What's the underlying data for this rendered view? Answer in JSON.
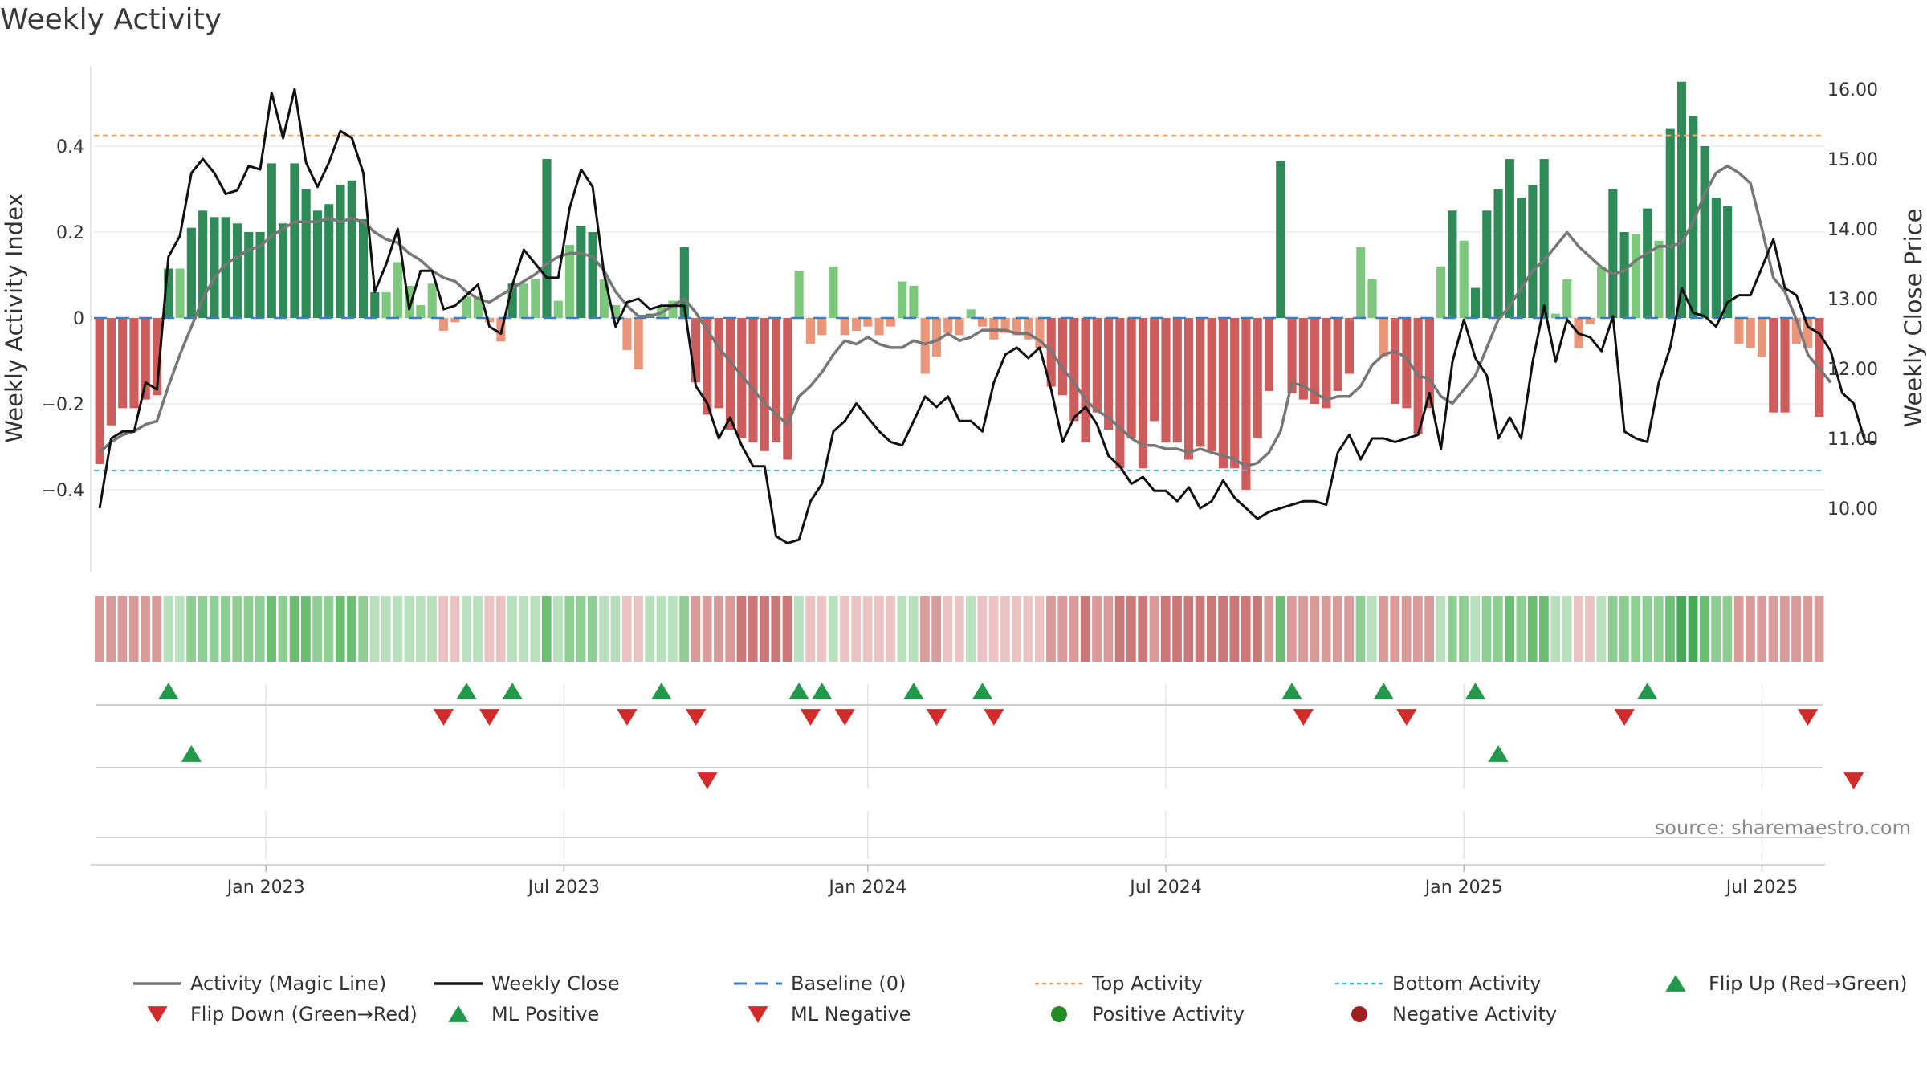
{
  "title": "Weekly Activity",
  "source": "source: sharemaestro.com",
  "chart_data": {
    "type": "bar+line",
    "title": "Weekly Activity",
    "ylabel_left": "Weekly Activity Index",
    "ylabel_right": "Weekly Close Price",
    "ylim_left": [
      -0.6,
      0.6
    ],
    "ylim_right": [
      9.2,
      16.4
    ],
    "yticks_left": [
      {
        "value": 0.4,
        "label": "0.4"
      },
      {
        "value": 0.2,
        "label": "0.2"
      },
      {
        "value": 0,
        "label": "0"
      },
      {
        "value": -0.2,
        "label": "−0.2"
      },
      {
        "value": -0.4,
        "label": "−0.4"
      }
    ],
    "yticks_right": [
      {
        "value": 16,
        "label": "16.00"
      },
      {
        "value": 15,
        "label": "15.00"
      },
      {
        "value": 14,
        "label": "14.00"
      },
      {
        "value": 13,
        "label": "13.00"
      },
      {
        "value": 12,
        "label": "12.00"
      },
      {
        "value": 11,
        "label": "11.00"
      },
      {
        "value": 10,
        "label": "10.00"
      }
    ],
    "xticks": [
      {
        "label": "Jan 2023",
        "week": 15
      },
      {
        "label": "Jul 2023",
        "week": 41
      },
      {
        "label": "Jan 2024",
        "week": 67.5
      },
      {
        "label": "Jul 2024",
        "week": 93.5
      },
      {
        "label": "Jan 2025",
        "week": 119.5
      },
      {
        "label": "Jul 2025",
        "week": 145.5
      }
    ],
    "top_activity": 0.425,
    "bottom_activity": -0.355,
    "activity": [
      -0.34,
      -0.25,
      -0.21,
      -0.21,
      -0.19,
      -0.18,
      0.115,
      0.115,
      0.21,
      0.25,
      0.235,
      0.235,
      0.22,
      0.2,
      0.2,
      0.36,
      0.22,
      0.36,
      0.3,
      0.25,
      0.265,
      0.31,
      0.32,
      0.23,
      0.06,
      0.06,
      0.13,
      0.075,
      0.03,
      0.08,
      -0.03,
      -0.01,
      0.05,
      0.05,
      -0.01,
      -0.055,
      0.08,
      0.08,
      0.09,
      0.37,
      0.04,
      0.17,
      0.215,
      0.2,
      0.09,
      0.03,
      -0.075,
      -0.12,
      0.01,
      0.025,
      0.04,
      0.165,
      -0.15,
      -0.225,
      -0.21,
      -0.26,
      -0.28,
      -0.29,
      -0.31,
      -0.29,
      -0.33,
      0.11,
      -0.06,
      -0.04,
      0.12,
      -0.04,
      -0.03,
      -0.02,
      -0.04,
      -0.02,
      0.085,
      0.075,
      -0.13,
      -0.09,
      -0.035,
      -0.04,
      0.02,
      -0.02,
      -0.05,
      -0.035,
      -0.04,
      -0.05,
      -0.07,
      -0.16,
      -0.18,
      -0.24,
      -0.29,
      -0.22,
      -0.26,
      -0.35,
      -0.28,
      -0.35,
      -0.24,
      -0.29,
      -0.29,
      -0.33,
      -0.3,
      -0.31,
      -0.35,
      -0.35,
      -0.4,
      -0.28,
      -0.17,
      0.365,
      -0.175,
      -0.19,
      -0.2,
      -0.21,
      -0.17,
      -0.13,
      0.165,
      0.09,
      -0.09,
      -0.2,
      -0.21,
      -0.27,
      -0.21,
      0.12,
      0.25,
      0.18,
      0.07,
      0.25,
      0.3,
      0.37,
      0.28,
      0.31,
      0.37,
      0.01,
      0.09,
      -0.07,
      -0.015,
      0.12,
      0.3,
      0.2,
      0.195,
      0.255,
      0.18,
      0.44,
      0.55,
      0.47,
      0.4,
      0.28,
      0.26,
      -0.06,
      -0.07,
      -0.09,
      -0.22,
      -0.22,
      -0.06,
      -0.07,
      -0.23
    ],
    "weekly_close": [
      10.0,
      11.0,
      11.1,
      11.1,
      11.8,
      11.7,
      13.6,
      13.9,
      14.8,
      15.0,
      14.8,
      14.5,
      14.55,
      14.9,
      14.85,
      15.95,
      15.3,
      16.0,
      14.95,
      14.6,
      14.95,
      15.4,
      15.3,
      14.8,
      13.1,
      13.5,
      14.0,
      12.85,
      13.4,
      13.4,
      12.85,
      12.9,
      13.05,
      13.2,
      12.6,
      12.5,
      13.2,
      13.7,
      13.5,
      13.3,
      13.3,
      14.3,
      14.85,
      14.6,
      13.35,
      12.6,
      12.95,
      13.0,
      12.85,
      12.9,
      12.9,
      12.9,
      11.75,
      11.5,
      11.0,
      11.3,
      10.9,
      10.6,
      10.6,
      9.6,
      9.5,
      9.55,
      10.1,
      10.35,
      11.1,
      11.25,
      11.5,
      11.3,
      11.1,
      10.95,
      10.9,
      11.25,
      11.6,
      11.45,
      11.6,
      11.25,
      11.25,
      11.1,
      11.8,
      12.2,
      12.3,
      12.15,
      12.3,
      11.7,
      10.95,
      11.3,
      11.45,
      11.2,
      10.75,
      10.6,
      10.35,
      10.45,
      10.25,
      10.25,
      10.1,
      10.3,
      10.0,
      10.1,
      10.4,
      10.15,
      10.0,
      9.85,
      9.95,
      10.0,
      10.05,
      10.1,
      10.1,
      10.05,
      10.8,
      11.05,
      10.7,
      11.0,
      11.0,
      10.95,
      11.0,
      11.05,
      11.65,
      10.85,
      12.1,
      12.7,
      12.15,
      11.9,
      11.0,
      11.3,
      11.0,
      12.1,
      12.9,
      12.1,
      12.7,
      12.5,
      12.45,
      12.25,
      12.75,
      11.1,
      11.0,
      10.95,
      11.8,
      12.3,
      13.15,
      12.8,
      12.75,
      12.6,
      12.95,
      13.05,
      13.05,
      13.45,
      13.85,
      13.15,
      13.05,
      12.6,
      12.5,
      12.25,
      11.65,
      11.5,
      10.95,
      10.95
    ],
    "magic_line": [
      10.8,
      10.95,
      11.05,
      11.1,
      11.2,
      11.25,
      11.75,
      12.2,
      12.6,
      13.0,
      13.3,
      13.5,
      13.6,
      13.7,
      13.75,
      13.9,
      14.0,
      14.1,
      14.1,
      14.1,
      14.15,
      14.1,
      14.15,
      14.1,
      13.95,
      13.85,
      13.8,
      13.65,
      13.55,
      13.4,
      13.3,
      13.25,
      13.1,
      13.0,
      12.95,
      13.05,
      13.15,
      13.25,
      13.35,
      13.5,
      13.6,
      13.65,
      13.65,
      13.6,
      13.4,
      13.1,
      12.9,
      12.75,
      12.75,
      12.8,
      12.9,
      13.0,
      12.8,
      12.55,
      12.3,
      12.1,
      11.9,
      11.7,
      11.5,
      11.35,
      11.2,
      11.6,
      11.75,
      11.95,
      12.2,
      12.4,
      12.35,
      12.45,
      12.35,
      12.3,
      12.3,
      12.4,
      12.35,
      12.4,
      12.5,
      12.4,
      12.45,
      12.55,
      12.55,
      12.55,
      12.5,
      12.5,
      12.4,
      12.25,
      12.0,
      11.8,
      11.55,
      11.4,
      11.3,
      11.15,
      11.0,
      10.9,
      10.9,
      10.85,
      10.85,
      10.8,
      10.85,
      10.8,
      10.75,
      10.7,
      10.6,
      10.65,
      10.8,
      11.1,
      11.8,
      11.75,
      11.65,
      11.55,
      11.6,
      11.6,
      11.75,
      12.05,
      12.2,
      12.25,
      12.15,
      11.9,
      11.85,
      11.6,
      11.5,
      11.7,
      11.9,
      12.3,
      12.7,
      12.9,
      13.15,
      13.4,
      13.55,
      13.75,
      13.95,
      13.75,
      13.6,
      13.45,
      13.35,
      13.4,
      13.55,
      13.65,
      13.75,
      13.75,
      13.8,
      14.1,
      14.5,
      14.8,
      14.9,
      14.8,
      14.65,
      14.0,
      13.3,
      13.1,
      12.7,
      12.2,
      12.0,
      11.8
    ],
    "heat_tiles": [
      -2,
      -2,
      -2,
      -2,
      -2,
      -2,
      1,
      1,
      2,
      2,
      2,
      2,
      2,
      2,
      2,
      3,
      2,
      3,
      3,
      2,
      2,
      3,
      3,
      2,
      1,
      1,
      1,
      1,
      1,
      1,
      -1,
      -1,
      1,
      1,
      -1,
      -1,
      1,
      1,
      1,
      3,
      1,
      2,
      2,
      2,
      1,
      1,
      -1,
      -1,
      1,
      1,
      1,
      2,
      -2,
      -2,
      -2,
      -2,
      -3,
      -3,
      -3,
      -3,
      -3,
      1,
      -1,
      -1,
      1,
      -1,
      -1,
      -1,
      -1,
      -1,
      1,
      1,
      -2,
      -2,
      -1,
      -1,
      1,
      -1,
      -1,
      -1,
      -1,
      -1,
      -1,
      -2,
      -2,
      -2,
      -3,
      -2,
      -2,
      -3,
      -3,
      -3,
      -2,
      -3,
      -3,
      -3,
      -3,
      -3,
      -3,
      -3,
      -3,
      -3,
      -2,
      3,
      -2,
      -2,
      -2,
      -2,
      -2,
      -2,
      2,
      1,
      -2,
      -2,
      -2,
      -2,
      -2,
      1,
      2,
      2,
      1,
      2,
      2,
      3,
      2,
      3,
      3,
      1,
      1,
      -1,
      -1,
      1,
      2,
      2,
      2,
      2,
      2,
      3,
      4,
      4,
      3,
      2,
      2,
      -2,
      -2,
      -2,
      -2,
      -2,
      -2,
      -2,
      -2
    ],
    "flip_up_weeks": [
      6,
      32,
      36,
      49,
      61,
      63,
      71,
      77,
      104,
      112,
      120,
      135
    ],
    "flip_down_weeks": [
      30,
      34,
      46,
      52,
      62,
      65,
      73,
      78,
      105,
      114,
      133,
      149
    ],
    "ml_positive_weeks": [
      8,
      122
    ],
    "ml_negative_weeks": [
      53,
      153
    ],
    "legend": [
      {
        "label": "Activity (Magic Line)",
        "symbol": "line",
        "color": "#777777"
      },
      {
        "label": "Weekly Close",
        "symbol": "line",
        "color": "#111111"
      },
      {
        "label": "Baseline (0)",
        "symbol": "dash",
        "color": "#3f7fbf"
      },
      {
        "label": "Top Activity",
        "symbol": "dot",
        "color": "#f0a868"
      },
      {
        "label": "Bottom Activity",
        "symbol": "dot",
        "color": "#3cc8c8"
      },
      {
        "label": "Flip Up (Red→Green)",
        "symbol": "tri-up",
        "color": "#22994a"
      },
      {
        "label": "Flip Down (Green→Red)",
        "symbol": "tri-down",
        "color": "#d22b2b"
      },
      {
        "label": "ML Positive",
        "symbol": "tri-up",
        "color": "#22994a"
      },
      {
        "label": "ML Negative",
        "symbol": "tri-down",
        "color": "#d22b2b"
      },
      {
        "label": "Positive Activity",
        "symbol": "circle",
        "color": "#228b22"
      },
      {
        "label": "Negative Activity",
        "symbol": "circle",
        "color": "#a11f1f"
      }
    ],
    "colors": {
      "pos_dark": "#2e8b57",
      "pos_light": "#7ec87e",
      "neg_dark": "#cd5c5c",
      "neg_light": "#e9967a",
      "top_line": "#f0a868",
      "bottom_line": "#3cc8c8",
      "baseline": "#3f7fbf",
      "magic_line": "#777777",
      "close_line": "#111111",
      "flip_up": "#22994a",
      "flip_down": "#d22b2b"
    }
  }
}
